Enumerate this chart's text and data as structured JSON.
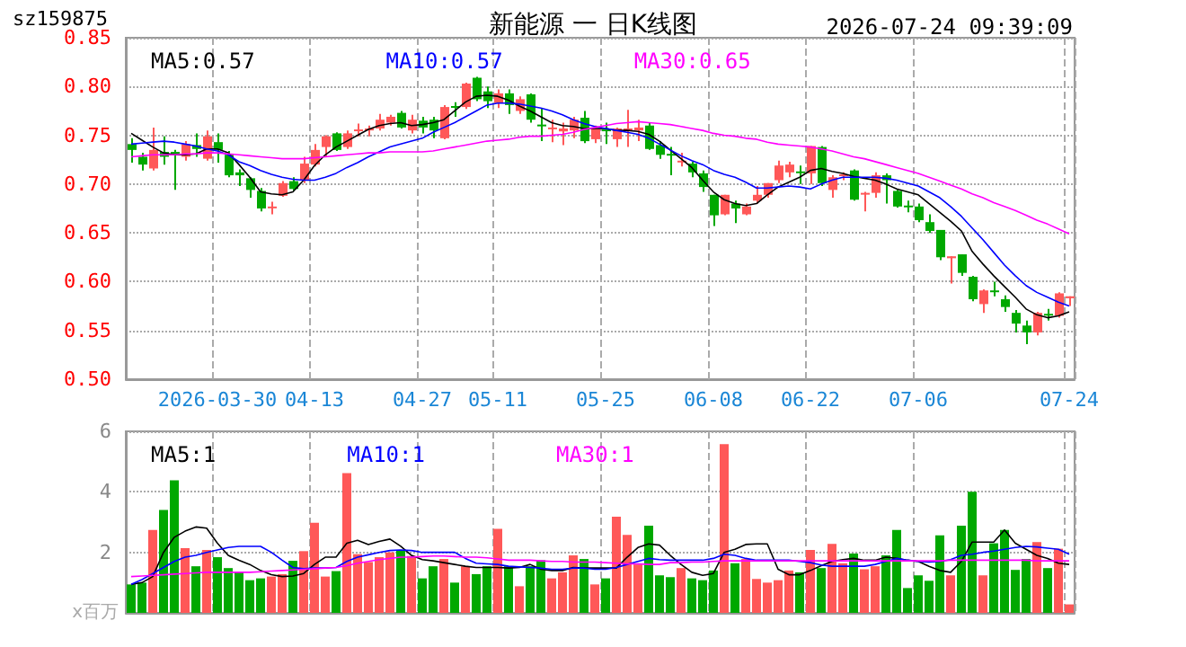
{
  "chart_data": [
    {
      "type": "candlestick",
      "title": "新能源 一 日K线图",
      "subtitle": "sz159875",
      "annotations": [
        "2026-07-24 09:39:09"
      ],
      "categories": [
        null,
        null,
        null,
        null,
        null,
        null,
        null,
        null,
        "2026-03-30",
        null,
        null,
        null,
        null,
        null,
        null,
        null,
        null,
        "04-13",
        null,
        null,
        null,
        null,
        null,
        null,
        null,
        null,
        null,
        "04-27",
        null,
        null,
        null,
        null,
        null,
        null,
        "05-11",
        null,
        null,
        null,
        null,
        null,
        null,
        null,
        null,
        null,
        "05-25",
        null,
        null,
        null,
        null,
        null,
        null,
        null,
        null,
        null,
        "06-08",
        null,
        null,
        null,
        null,
        null,
        null,
        null,
        null,
        "06-22",
        null,
        null,
        null,
        null,
        null,
        null,
        null,
        null,
        null,
        "07-06",
        null,
        null,
        null,
        null,
        null,
        null,
        null,
        null,
        null,
        null,
        null,
        null,
        null,
        "07-24"
      ],
      "ohlc": [
        [
          0.741,
          0.747,
          0.722,
          0.735
        ],
        [
          0.728,
          0.732,
          0.714,
          0.72
        ],
        [
          0.716,
          0.758,
          0.714,
          0.735
        ],
        [
          0.733,
          0.749,
          0.72,
          0.728
        ],
        [
          0.733,
          0.735,
          0.694,
          0.73
        ],
        [
          0.728,
          0.744,
          0.724,
          0.741
        ],
        [
          0.74,
          0.752,
          0.728,
          0.736
        ],
        [
          0.726,
          0.755,
          0.724,
          0.749
        ],
        [
          0.743,
          0.752,
          0.722,
          0.735
        ],
        [
          0.73,
          0.734,
          0.707,
          0.709
        ],
        [
          0.712,
          0.715,
          0.698,
          0.709
        ],
        [
          0.706,
          0.707,
          0.686,
          0.694
        ],
        [
          0.693,
          0.696,
          0.672,
          0.675
        ],
        [
          0.676,
          0.682,
          0.669,
          0.677
        ],
        [
          0.688,
          0.703,
          0.687,
          0.701
        ],
        [
          0.703,
          0.707,
          0.693,
          0.695
        ],
        [
          0.704,
          0.728,
          0.701,
          0.721
        ],
        [
          0.72,
          0.741,
          0.718,
          0.735
        ],
        [
          0.738,
          0.75,
          0.728,
          0.749
        ],
        [
          0.752,
          0.753,
          0.734,
          0.735
        ],
        [
          0.738,
          0.755,
          0.736,
          0.752
        ],
        [
          0.755,
          0.762,
          0.749,
          0.756
        ],
        [
          0.755,
          0.76,
          0.749,
          0.757
        ],
        [
          0.757,
          0.772,
          0.755,
          0.766
        ],
        [
          0.763,
          0.771,
          0.76,
          0.769
        ],
        [
          0.773,
          0.775,
          0.757,
          0.758
        ],
        [
          0.755,
          0.771,
          0.752,
          0.766
        ],
        [
          0.765,
          0.769,
          0.752,
          0.758
        ],
        [
          0.766,
          0.769,
          0.747,
          0.755
        ],
        [
          0.747,
          0.781,
          0.746,
          0.779
        ],
        [
          0.78,
          0.784,
          0.769,
          0.779
        ],
        [
          0.779,
          0.804,
          0.777,
          0.803
        ],
        [
          0.809,
          0.81,
          0.785,
          0.787
        ],
        [
          0.795,
          0.8,
          0.778,
          0.785
        ],
        [
          0.783,
          0.797,
          0.778,
          0.793
        ],
        [
          0.793,
          0.797,
          0.772,
          0.781
        ],
        [
          0.775,
          0.79,
          0.772,
          0.787
        ],
        [
          0.792,
          0.793,
          0.763,
          0.766
        ],
        [
          0.761,
          0.778,
          0.744,
          0.76
        ],
        [
          0.757,
          0.766,
          0.743,
          0.758
        ],
        [
          0.754,
          0.763,
          0.74,
          0.757
        ],
        [
          0.755,
          0.769,
          0.747,
          0.766
        ],
        [
          0.768,
          0.775,
          0.742,
          0.744
        ],
        [
          0.746,
          0.76,
          0.742,
          0.757
        ],
        [
          0.756,
          0.763,
          0.741,
          0.755
        ],
        [
          0.746,
          0.758,
          0.738,
          0.757
        ],
        [
          0.756,
          0.776,
          0.738,
          0.757
        ],
        [
          0.755,
          0.766,
          0.744,
          0.758
        ],
        [
          0.76,
          0.763,
          0.735,
          0.736
        ],
        [
          0.74,
          0.744,
          0.726,
          0.73
        ],
        [
          0.731,
          0.738,
          0.709,
          0.73
        ],
        [
          0.723,
          0.732,
          0.718,
          0.724
        ],
        [
          0.721,
          0.723,
          0.707,
          0.712
        ],
        [
          0.711,
          0.714,
          0.692,
          0.697
        ],
        [
          0.689,
          0.689,
          0.657,
          0.668
        ],
        [
          0.669,
          0.689,
          0.668,
          0.689
        ],
        [
          0.68,
          0.683,
          0.66,
          0.675
        ],
        [
          0.669,
          0.68,
          0.668,
          0.677
        ],
        [
          0.683,
          0.698,
          0.68,
          0.689
        ],
        [
          0.689,
          0.701,
          0.686,
          0.701
        ],
        [
          0.704,
          0.724,
          0.701,
          0.719
        ],
        [
          0.712,
          0.723,
          0.707,
          0.72
        ],
        [
          0.713,
          0.719,
          0.7,
          0.712
        ],
        [
          0.711,
          0.739,
          0.7,
          0.739
        ],
        [
          0.738,
          0.739,
          0.698,
          0.701
        ],
        [
          0.694,
          0.709,
          0.686,
          0.707
        ],
        [
          0.709,
          0.712,
          0.704,
          0.71
        ],
        [
          0.714,
          0.715,
          0.683,
          0.684
        ],
        [
          0.69,
          0.692,
          0.672,
          0.691
        ],
        [
          0.691,
          0.712,
          0.686,
          0.709
        ],
        [
          0.709,
          0.711,
          0.68,
          0.704
        ],
        [
          0.693,
          0.695,
          0.676,
          0.677
        ],
        [
          0.678,
          0.683,
          0.671,
          0.677
        ],
        [
          0.677,
          0.68,
          0.661,
          0.663
        ],
        [
          0.661,
          0.669,
          0.65,
          0.652
        ],
        [
          0.653,
          0.653,
          0.622,
          0.625
        ],
        [
          0.624,
          0.626,
          0.598,
          0.626
        ],
        [
          0.628,
          0.628,
          0.606,
          0.609
        ],
        [
          0.605,
          0.606,
          0.58,
          0.582
        ],
        [
          0.577,
          0.592,
          0.568,
          0.591
        ],
        [
          0.591,
          0.6,
          0.585,
          0.59
        ],
        [
          0.582,
          0.586,
          0.569,
          0.574
        ],
        [
          0.568,
          0.571,
          0.548,
          0.557
        ],
        [
          0.555,
          0.56,
          0.536,
          0.548
        ],
        [
          0.548,
          0.569,
          0.545,
          0.568
        ],
        [
          0.567,
          0.572,
          0.56,
          0.566
        ],
        [
          0.565,
          0.589,
          0.563,
          0.588
        ],
        [
          0.583,
          0.585,
          0.575,
          0.585
        ]
      ],
      "series": [
        {
          "type": "line",
          "name": "MA5:0.57",
          "color": "#000000",
          "values": [
            0.752,
            0.745,
            0.738,
            0.732,
            0.73,
            0.73,
            0.731,
            0.736,
            0.736,
            0.732,
            0.72,
            0.707,
            0.692,
            0.69,
            0.689,
            0.692,
            0.704,
            0.719,
            0.73,
            0.738,
            0.744,
            0.75,
            0.756,
            0.76,
            0.762,
            0.763,
            0.76,
            0.761,
            0.763,
            0.766,
            0.775,
            0.784,
            0.79,
            0.791,
            0.79,
            0.786,
            0.78,
            0.775,
            0.769,
            0.763,
            0.76,
            0.759,
            0.757,
            0.757,
            0.757,
            0.755,
            0.755,
            0.754,
            0.751,
            0.744,
            0.735,
            0.726,
            0.717,
            0.704,
            0.692,
            0.684,
            0.68,
            0.678,
            0.68,
            0.689,
            0.697,
            0.702,
            0.707,
            0.714,
            0.716,
            0.713,
            0.711,
            0.708,
            0.706,
            0.704,
            0.7,
            0.695,
            0.692,
            0.689,
            0.68,
            0.671,
            0.662,
            0.652,
            0.631,
            0.618,
            0.606,
            0.595,
            0.584,
            0.572,
            0.566,
            0.563,
            0.565,
            0.569
          ]
        },
        {
          "type": "line",
          "name": "MA10:0.57",
          "color": "#0000ff",
          "values": [
            0.741,
            0.742,
            0.743,
            0.744,
            0.743,
            0.741,
            0.739,
            0.736,
            0.734,
            0.73,
            0.723,
            0.719,
            0.714,
            0.71,
            0.707,
            0.705,
            0.704,
            0.704,
            0.707,
            0.711,
            0.717,
            0.722,
            0.728,
            0.733,
            0.738,
            0.741,
            0.744,
            0.747,
            0.753,
            0.758,
            0.763,
            0.769,
            0.775,
            0.781,
            0.783,
            0.783,
            0.782,
            0.78,
            0.778,
            0.775,
            0.771,
            0.766,
            0.762,
            0.759,
            0.757,
            0.755,
            0.753,
            0.751,
            0.747,
            0.741,
            0.735,
            0.729,
            0.724,
            0.72,
            0.714,
            0.71,
            0.707,
            0.702,
            0.696,
            0.696,
            0.697,
            0.698,
            0.697,
            0.695,
            0.7,
            0.704,
            0.707,
            0.707,
            0.707,
            0.707,
            0.706,
            0.704,
            0.701,
            0.698,
            0.692,
            0.686,
            0.677,
            0.667,
            0.655,
            0.643,
            0.63,
            0.617,
            0.606,
            0.596,
            0.589,
            0.584,
            0.579,
            0.575
          ]
        },
        {
          "type": "line",
          "name": "MA30:0.65",
          "color": "#ff00ff",
          "values": [
            0.728,
            0.729,
            0.73,
            0.73,
            0.73,
            0.731,
            0.731,
            0.732,
            0.732,
            0.731,
            0.73,
            0.729,
            0.728,
            0.727,
            0.726,
            0.726,
            0.726,
            0.727,
            0.728,
            0.729,
            0.73,
            0.731,
            0.732,
            0.732,
            0.733,
            0.733,
            0.733,
            0.733,
            0.734,
            0.736,
            0.738,
            0.74,
            0.742,
            0.744,
            0.745,
            0.746,
            0.748,
            0.749,
            0.749,
            0.75,
            0.751,
            0.753,
            0.756,
            0.758,
            0.76,
            0.762,
            0.763,
            0.764,
            0.763,
            0.762,
            0.761,
            0.759,
            0.757,
            0.755,
            0.752,
            0.75,
            0.749,
            0.747,
            0.746,
            0.743,
            0.741,
            0.74,
            0.739,
            0.738,
            0.736,
            0.734,
            0.731,
            0.728,
            0.726,
            0.723,
            0.72,
            0.717,
            0.714,
            0.711,
            0.707,
            0.703,
            0.699,
            0.695,
            0.69,
            0.686,
            0.681,
            0.677,
            0.673,
            0.668,
            0.663,
            0.659,
            0.654,
            0.649
          ]
        }
      ],
      "ylim": [
        0.5,
        0.85
      ],
      "yticks": [
        {
          "value": 0.5,
          "label": "0.50"
        },
        {
          "value": 0.55,
          "label": "0.55"
        },
        {
          "value": 0.6,
          "label": "0.60"
        },
        {
          "value": 0.65,
          "label": "0.65"
        },
        {
          "value": 0.7,
          "label": "0.70"
        },
        {
          "value": 0.75,
          "label": "0.75"
        },
        {
          "value": 0.8,
          "label": "0.80"
        },
        {
          "value": 0.85,
          "label": "0.85"
        }
      ],
      "grid": true,
      "legend": "top left",
      "marker": "none",
      "line_style": "solid"
    },
    {
      "type": "bar",
      "ylabel": "x百万",
      "categories": [
        null,
        null,
        null,
        null,
        null,
        null,
        null,
        null,
        null,
        null,
        null,
        null,
        null,
        null,
        null,
        null,
        null,
        null,
        null,
        null,
        null,
        null,
        null,
        null,
        null,
        null,
        null,
        null,
        null,
        null,
        null,
        null,
        null,
        null,
        null,
        null,
        null,
        null,
        null,
        null,
        null,
        null,
        null,
        null,
        null,
        null,
        null,
        null,
        null,
        null,
        null,
        null,
        null,
        null,
        null,
        null,
        null,
        null,
        null,
        null,
        null,
        null,
        null,
        null,
        null,
        null,
        null,
        null,
        null,
        null,
        null,
        null,
        null,
        null,
        null,
        null,
        null,
        null,
        null,
        null,
        null,
        null,
        null,
        null,
        null,
        null,
        null,
        null
      ],
      "values": [
        0.94,
        1.0,
        2.74,
        3.4,
        4.38,
        2.14,
        1.54,
        2.08,
        1.84,
        1.48,
        1.34,
        1.08,
        1.14,
        1.2,
        1.28,
        1.72,
        2.04,
        2.98,
        1.2,
        1.38,
        4.62,
        1.94,
        1.68,
        1.84,
        2.0,
        2.08,
        1.88,
        1.14,
        1.54,
        1.78,
        1.0,
        1.54,
        1.28,
        1.54,
        2.78,
        1.54,
        0.88,
        1.54,
        1.74,
        1.14,
        1.34,
        1.9,
        1.78,
        0.94,
        1.14,
        3.18,
        2.58,
        1.6,
        2.88,
        1.24,
        1.18,
        1.48,
        1.14,
        1.08,
        1.4,
        5.58,
        1.64,
        1.78,
        1.12,
        1.0,
        1.08,
        1.4,
        1.34,
        2.08,
        1.48,
        2.28,
        1.64,
        1.96,
        1.44,
        1.54,
        1.9,
        2.74,
        0.82,
        1.24,
        1.06,
        2.56,
        1.24,
        2.88,
        4.0,
        1.24,
        2.3,
        2.74,
        1.42,
        1.78,
        2.34,
        1.48,
        2.12,
        0.28
      ],
      "colors": [
        "#00a800",
        "#00a800",
        "#ff5858",
        "#00a800",
        "#00a800",
        "#ff5858",
        "#00a800",
        "#ff5858",
        "#00a800",
        "#00a800",
        "#00a800",
        "#00a800",
        "#00a800",
        "#ff5858",
        "#ff5858",
        "#00a800",
        "#ff5858",
        "#ff5858",
        "#ff5858",
        "#00a800",
        "#ff5858",
        "#ff5858",
        "#ff5858",
        "#ff5858",
        "#ff5858",
        "#00a800",
        "#ff5858",
        "#00a800",
        "#00a800",
        "#ff5858",
        "#00a800",
        "#ff5858",
        "#00a800",
        "#00a800",
        "#ff5858",
        "#00a800",
        "#ff5858",
        "#00a800",
        "#00a800",
        "#ff5858",
        "#ff5858",
        "#ff5858",
        "#00a800",
        "#ff5858",
        "#00a800",
        "#ff5858",
        "#ff5858",
        "#ff5858",
        "#00a800",
        "#00a800",
        "#00a800",
        "#ff5858",
        "#00a800",
        "#00a800",
        "#00a800",
        "#ff5858",
        "#00a800",
        "#ff5858",
        "#ff5858",
        "#ff5858",
        "#ff5858",
        "#ff5858",
        "#00a800",
        "#ff5858",
        "#00a800",
        "#ff5858",
        "#ff5858",
        "#00a800",
        "#ff5858",
        "#ff5858",
        "#00a800",
        "#00a800",
        "#00a800",
        "#00a800",
        "#00a800",
        "#00a800",
        "#ff5858",
        "#00a800",
        "#00a800",
        "#ff5858",
        "#00a800",
        "#00a800",
        "#00a800",
        "#00a800",
        "#ff5858",
        "#00a800",
        "#ff5858",
        "#ff5858"
      ],
      "series": [
        {
          "type": "line",
          "name": "MA5:1",
          "color": "#000000",
          "values": [
            0.94,
            1.0,
            1.2,
            2.0,
            2.5,
            2.7,
            2.84,
            2.8,
            2.3,
            1.9,
            1.74,
            1.6,
            1.4,
            1.26,
            1.2,
            1.22,
            1.3,
            1.6,
            1.84,
            1.84,
            2.3,
            2.4,
            2.26,
            2.36,
            2.44,
            2.2,
            1.9,
            1.76,
            1.72,
            1.66,
            1.6,
            1.54,
            1.5,
            1.5,
            1.5,
            1.48,
            1.5,
            1.6,
            1.44,
            1.4,
            1.4,
            1.5,
            1.48,
            1.48,
            1.48,
            1.48,
            1.84,
            2.16,
            2.28,
            2.24,
            1.9,
            1.6,
            1.34,
            1.24,
            1.3,
            2.0,
            2.1,
            2.26,
            2.28,
            2.28,
            1.44,
            1.26,
            1.26,
            1.4,
            1.56,
            1.7,
            1.76,
            1.8,
            1.74,
            1.74,
            1.84,
            1.8,
            1.74,
            1.7,
            1.54,
            1.4,
            1.34,
            1.7,
            2.34,
            2.34,
            2.34,
            2.74,
            2.3,
            2.1,
            1.9,
            1.8,
            1.64,
            1.6
          ]
        },
        {
          "type": "line",
          "name": "MA10:1",
          "color": "#0000ff",
          "values": [
            0.94,
            1.1,
            1.3,
            1.5,
            1.7,
            1.84,
            1.9,
            2.0,
            2.08,
            2.16,
            2.2,
            2.2,
            2.2,
            2.0,
            1.74,
            1.5,
            1.46,
            1.48,
            1.48,
            1.5,
            1.7,
            1.84,
            1.92,
            2.0,
            2.06,
            2.08,
            2.06,
            2.0,
            2.0,
            2.0,
            2.0,
            1.8,
            1.64,
            1.62,
            1.6,
            1.54,
            1.52,
            1.5,
            1.48,
            1.44,
            1.44,
            1.48,
            1.48,
            1.44,
            1.44,
            1.5,
            1.6,
            1.7,
            1.8,
            1.76,
            1.74,
            1.74,
            1.74,
            1.74,
            1.8,
            1.94,
            1.9,
            1.8,
            1.74,
            1.74,
            1.74,
            1.74,
            1.7,
            1.66,
            1.58,
            1.54,
            1.54,
            1.54,
            1.54,
            1.6,
            1.7,
            1.8,
            1.74,
            1.7,
            1.68,
            1.7,
            1.76,
            1.9,
            1.94,
            2.0,
            2.04,
            2.1,
            2.16,
            2.2,
            2.18,
            2.14,
            2.1,
            1.94
          ]
        },
        {
          "type": "line",
          "name": "MA30:1",
          "color": "#ff00ff",
          "values": [
            1.2,
            1.22,
            1.24,
            1.26,
            1.28,
            1.3,
            1.32,
            1.34,
            1.34,
            1.34,
            1.34,
            1.34,
            1.36,
            1.38,
            1.4,
            1.42,
            1.44,
            1.46,
            1.48,
            1.5,
            1.56,
            1.64,
            1.7,
            1.76,
            1.8,
            1.84,
            1.84,
            1.86,
            1.88,
            1.88,
            1.86,
            1.84,
            1.84,
            1.82,
            1.78,
            1.74,
            1.74,
            1.74,
            1.72,
            1.7,
            1.7,
            1.68,
            1.68,
            1.68,
            1.66,
            1.64,
            1.62,
            1.62,
            1.6,
            1.6,
            1.66,
            1.66,
            1.68,
            1.68,
            1.7,
            1.72,
            1.72,
            1.72,
            1.72,
            1.72,
            1.72,
            1.72,
            1.72,
            1.72,
            1.72,
            1.72,
            1.72,
            1.72,
            1.72,
            1.72,
            1.72,
            1.72,
            1.72,
            1.72,
            1.72,
            1.72,
            1.74,
            1.74,
            1.74,
            1.74,
            1.74,
            1.74,
            1.74,
            1.74,
            1.72,
            1.72,
            1.72,
            1.72
          ]
        }
      ],
      "ylim": [
        0,
        6
      ],
      "yticks": [
        2,
        4,
        6
      ],
      "grid": true,
      "legend": "top left",
      "marker": "none",
      "line_style": "solid",
      "tick_labels": "y"
    }
  ]
}
